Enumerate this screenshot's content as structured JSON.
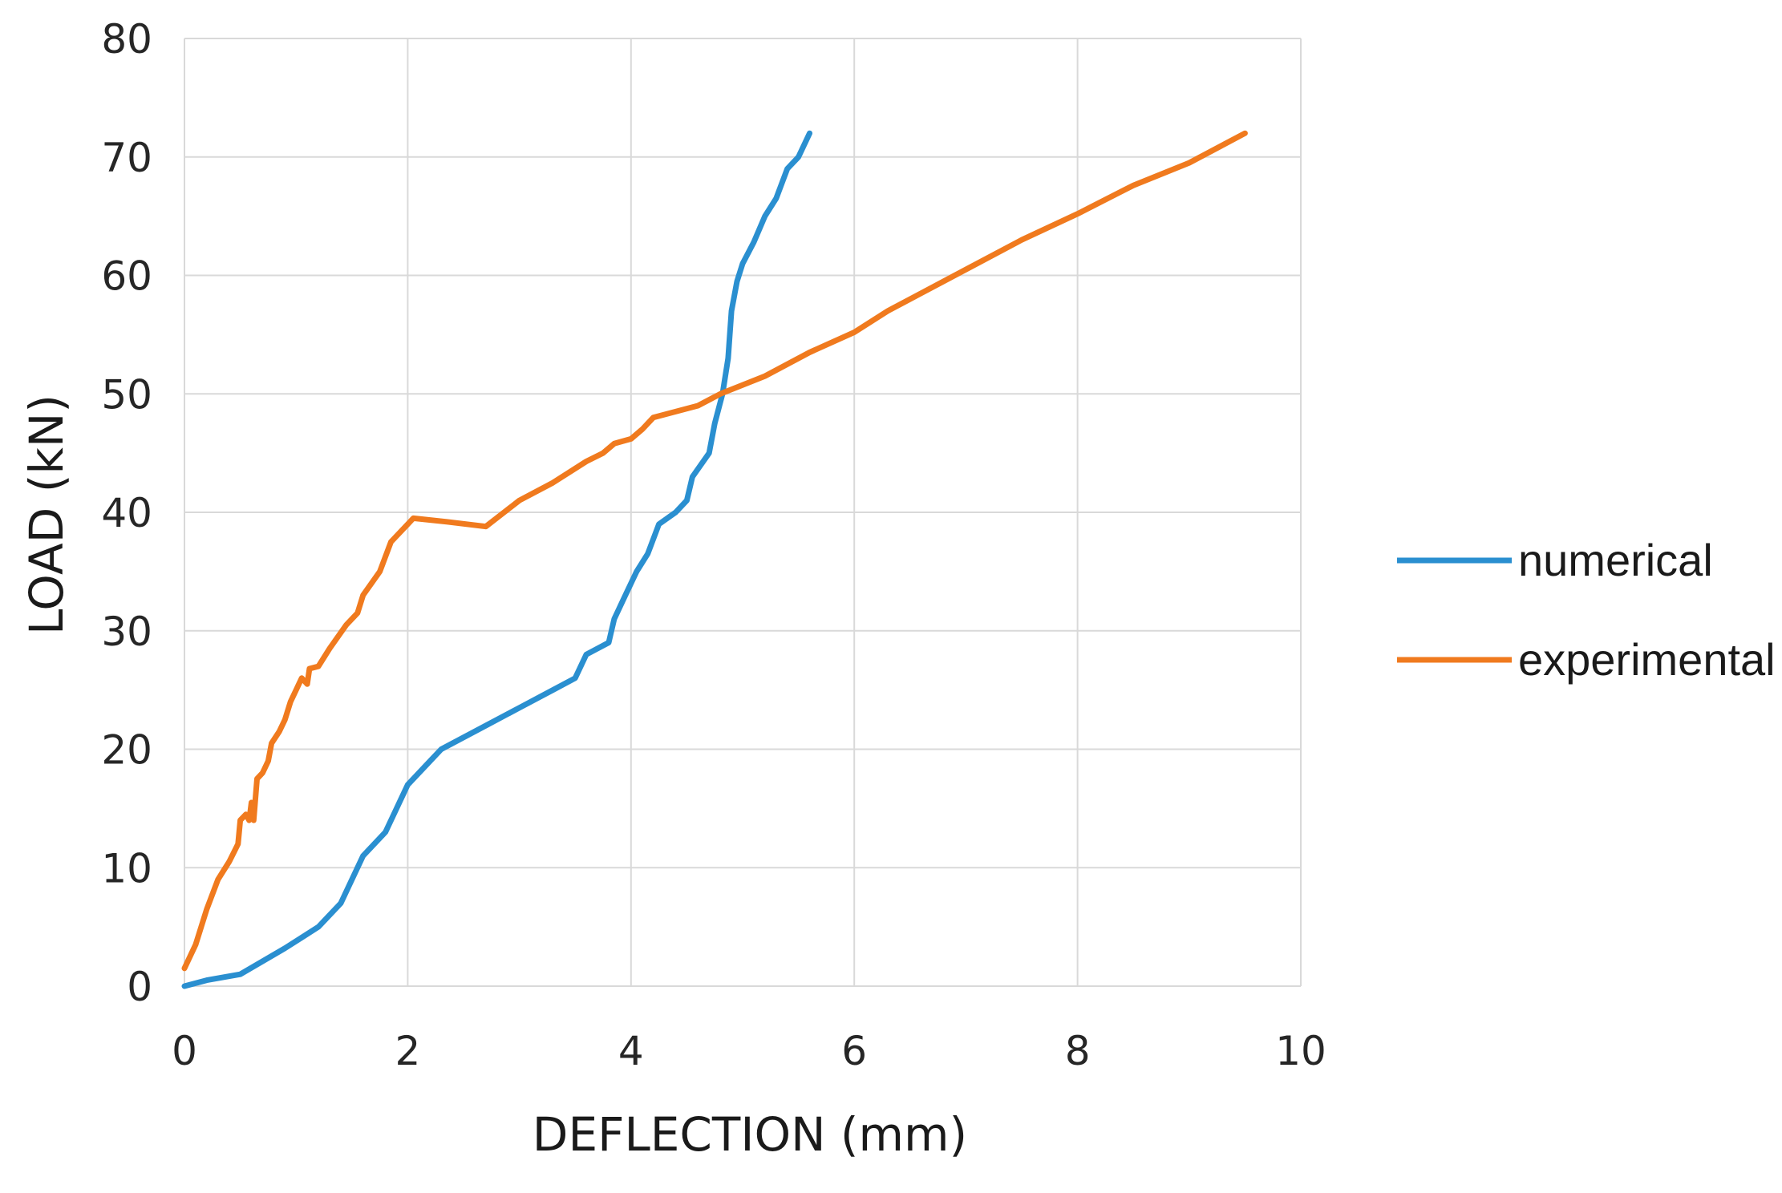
{
  "chart_data": {
    "type": "line",
    "xlabel": "DEFLECTION (mm)",
    "ylabel": "LOAD (kN)",
    "xlim": [
      0,
      10
    ],
    "ylim": [
      0,
      80
    ],
    "xticks": [
      "0",
      "2",
      "4",
      "6",
      "8",
      "10"
    ],
    "yticks": [
      "0",
      "10",
      "20",
      "30",
      "40",
      "50",
      "60",
      "70",
      "80"
    ],
    "grid": true,
    "legend_position": "right",
    "series": [
      {
        "name": "numerical",
        "color": "#2A8FD0",
        "points": [
          [
            0,
            0
          ],
          [
            0.2,
            0.5
          ],
          [
            0.5,
            1
          ],
          [
            0.9,
            3.2
          ],
          [
            1.2,
            5
          ],
          [
            1.4,
            7
          ],
          [
            1.6,
            11
          ],
          [
            1.8,
            13
          ],
          [
            2.0,
            17
          ],
          [
            2.2,
            19
          ],
          [
            2.3,
            20
          ],
          [
            2.7,
            22
          ],
          [
            3.0,
            23.5
          ],
          [
            3.3,
            25
          ],
          [
            3.5,
            26
          ],
          [
            3.6,
            28
          ],
          [
            3.8,
            29
          ],
          [
            3.85,
            31
          ],
          [
            3.95,
            33
          ],
          [
            4.05,
            35
          ],
          [
            4.15,
            36.5
          ],
          [
            4.25,
            39
          ],
          [
            4.4,
            40
          ],
          [
            4.5,
            41
          ],
          [
            4.55,
            43
          ],
          [
            4.7,
            45
          ],
          [
            4.75,
            47.5
          ],
          [
            4.82,
            50
          ],
          [
            4.87,
            53
          ],
          [
            4.9,
            57
          ],
          [
            4.95,
            59.5
          ],
          [
            5.0,
            61
          ],
          [
            5.1,
            62.8
          ],
          [
            5.2,
            65
          ],
          [
            5.3,
            66.5
          ],
          [
            5.4,
            69
          ],
          [
            5.5,
            70
          ],
          [
            5.6,
            72
          ]
        ]
      },
      {
        "name": "experimental",
        "color": "#F07A1E",
        "points": [
          [
            0,
            1.5
          ],
          [
            0.1,
            3.5
          ],
          [
            0.2,
            6.5
          ],
          [
            0.3,
            9
          ],
          [
            0.4,
            10.5
          ],
          [
            0.48,
            12
          ],
          [
            0.5,
            14
          ],
          [
            0.55,
            14.5
          ],
          [
            0.58,
            14
          ],
          [
            0.6,
            15.5
          ],
          [
            0.62,
            14
          ],
          [
            0.65,
            17.5
          ],
          [
            0.7,
            18
          ],
          [
            0.75,
            19
          ],
          [
            0.78,
            20.5
          ],
          [
            0.85,
            21.5
          ],
          [
            0.9,
            22.5
          ],
          [
            0.95,
            24
          ],
          [
            1.0,
            25
          ],
          [
            1.05,
            26
          ],
          [
            1.1,
            25.5
          ],
          [
            1.12,
            26.8
          ],
          [
            1.2,
            27
          ],
          [
            1.3,
            28.5
          ],
          [
            1.45,
            30.5
          ],
          [
            1.55,
            31.5
          ],
          [
            1.6,
            33
          ],
          [
            1.75,
            35
          ],
          [
            1.85,
            37.5
          ],
          [
            2.05,
            39.5
          ],
          [
            2.35,
            39.2
          ],
          [
            2.7,
            38.8
          ],
          [
            3.0,
            41
          ],
          [
            3.3,
            42.5
          ],
          [
            3.6,
            44.3
          ],
          [
            3.75,
            45
          ],
          [
            3.85,
            45.8
          ],
          [
            4.0,
            46.2
          ],
          [
            4.1,
            47
          ],
          [
            4.2,
            48
          ],
          [
            4.6,
            49
          ],
          [
            4.8,
            50
          ],
          [
            5.2,
            51.5
          ],
          [
            5.6,
            53.5
          ],
          [
            6.0,
            55.2
          ],
          [
            6.3,
            57
          ],
          [
            6.6,
            58.5
          ],
          [
            7.0,
            60.5
          ],
          [
            7.5,
            63
          ],
          [
            8.0,
            65.2
          ],
          [
            8.5,
            67.6
          ],
          [
            9.0,
            69.5
          ],
          [
            9.5,
            72
          ]
        ]
      }
    ]
  }
}
